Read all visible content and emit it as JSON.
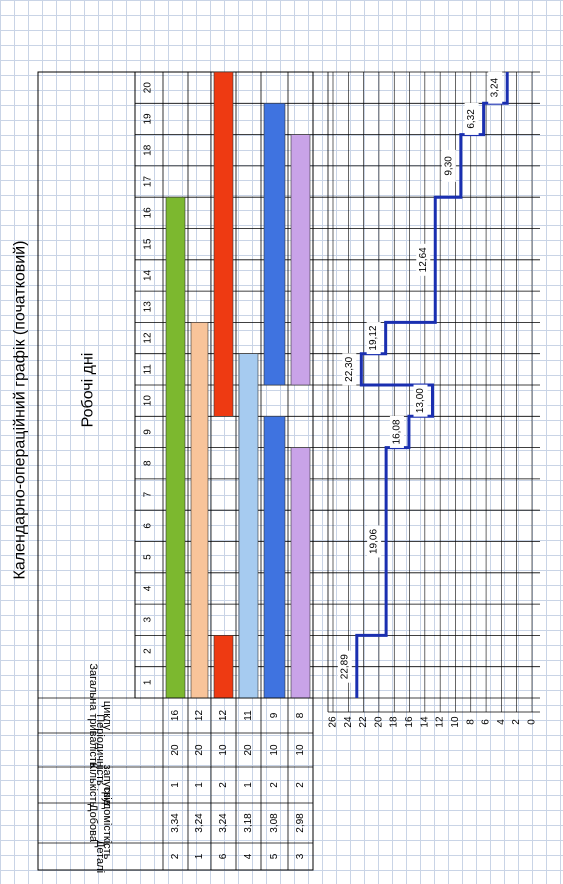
{
  "chart_data": {
    "type": "bar",
    "title": "Календарно-операційний графік (початковий)",
    "days_header": "Робочі дні",
    "days": [
      "1",
      "2",
      "3",
      "4",
      "5",
      "6",
      "7",
      "8",
      "9",
      "10",
      "11",
      "12",
      "13",
      "14",
      "15",
      "16",
      "17",
      "18",
      "19",
      "20"
    ],
    "table_columns": [
      "Деталі",
      "Добова трудомісткість",
      "Кількість запусків",
      "Періодичність",
      "Загальна тривалість циклу"
    ],
    "rows": [
      {
        "detail": "2",
        "labor": "3,34",
        "launches": "1",
        "period": "20",
        "cycle": "16",
        "color": "#7cb82f",
        "bars": [
          [
            1,
            16
          ]
        ]
      },
      {
        "detail": "1",
        "labor": "3,24",
        "launches": "1",
        "period": "20",
        "cycle": "12",
        "color": "#f8c49a",
        "bars": [
          [
            1,
            12
          ]
        ]
      },
      {
        "detail": "6",
        "labor": "3,24",
        "launches": "2",
        "period": "10",
        "cycle": "12",
        "color": "#ee3a12",
        "bars": [
          [
            1,
            2
          ],
          [
            10,
            20
          ]
        ]
      },
      {
        "detail": "4",
        "labor": "3,18",
        "launches": "1",
        "period": "20",
        "cycle": "11",
        "color": "#a6cbf0",
        "bars": [
          [
            1,
            11
          ]
        ]
      },
      {
        "detail": "5",
        "labor": "3,08",
        "launches": "2",
        "period": "10",
        "cycle": "9",
        "color": "#3f73e0",
        "bars": [
          [
            1,
            9
          ],
          [
            11,
            19
          ]
        ]
      },
      {
        "detail": "3",
        "labor": "2,98",
        "launches": "2",
        "period": "10",
        "cycle": "8",
        "color": "#c9a3e8",
        "bars": [
          [
            1,
            8
          ],
          [
            11,
            18
          ]
        ]
      }
    ],
    "load_axis_ticks": [
      "26",
      "24",
      "22",
      "20",
      "18",
      "16",
      "14",
      "12",
      "10",
      "8",
      "6",
      "4",
      "2",
      "0"
    ],
    "load_ylim": [
      0,
      26
    ],
    "load_series": [
      {
        "from": 0,
        "to": 2,
        "value": 22.89,
        "label": "22,89"
      },
      {
        "from": 2,
        "to": 8,
        "value": 19.06,
        "label": "19,06"
      },
      {
        "from": 8,
        "to": 9,
        "value": 16.08,
        "label": "16,08"
      },
      {
        "from": 9,
        "to": 10,
        "value": 13.0,
        "label": "13,00"
      },
      {
        "from": 10,
        "to": 11,
        "value": 22.3,
        "label": "22,30"
      },
      {
        "from": 11,
        "to": 12,
        "value": 19.12,
        "label": "19,12"
      },
      {
        "from": 12,
        "to": 16,
        "value": 12.64,
        "label": "12,64"
      },
      {
        "from": 16,
        "to": 18,
        "value": 9.3,
        "label": "9,30"
      },
      {
        "from": 18,
        "to": 19,
        "value": 6.32,
        "label": "6,32"
      },
      {
        "from": 19,
        "to": 20,
        "value": 3.24,
        "label": "3,24"
      }
    ],
    "colors": {
      "line": "#1a2fb0",
      "grid": "#000000"
    }
  }
}
